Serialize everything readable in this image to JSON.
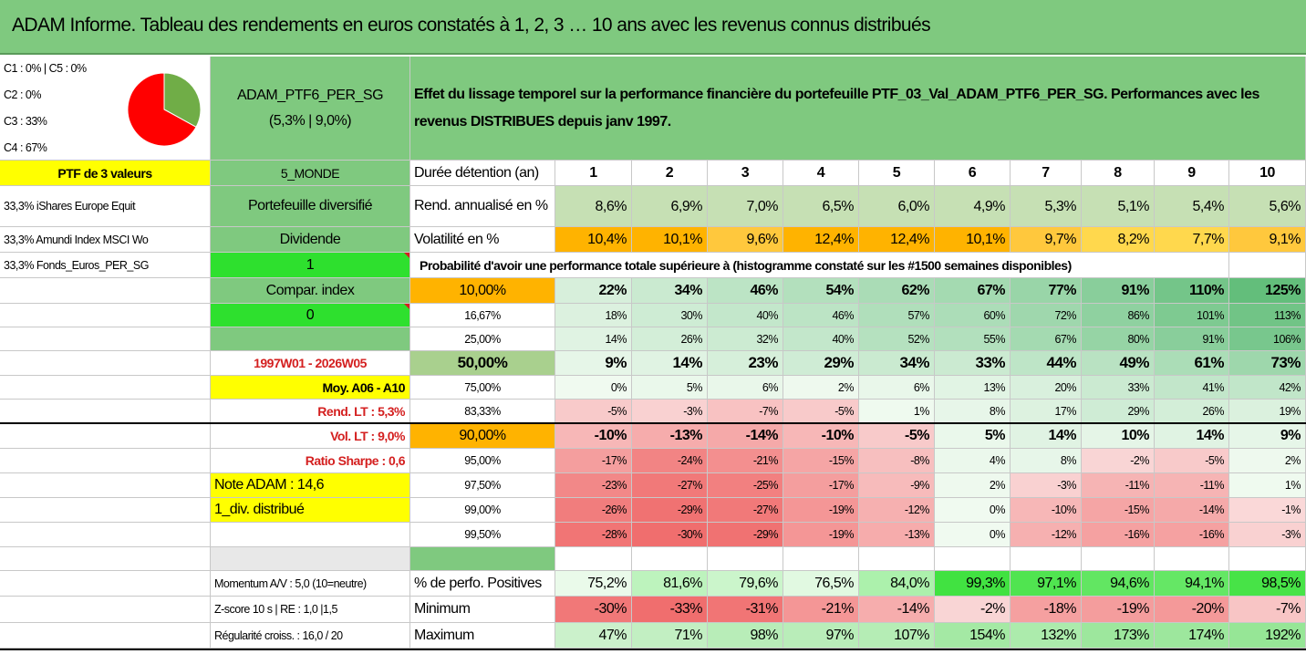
{
  "title": "ADAM Informe. Tableau des rendements en euros constatés à 1, 2, 3 … 10 ans avec les revenus connus distribués",
  "colors": {
    "header_green": "#7fc97f",
    "yellow": "#ffff00",
    "bright_green": "#2ee02e",
    "orange": "#ffb300",
    "pie_red": "#ff0000",
    "pie_green": "#70ad47"
  },
  "classes": [
    "C1 : 0% | C5 : 0%",
    "C2 : 0%",
    "C3 : 33%",
    "C4 : 67%"
  ],
  "pie": {
    "slices": [
      {
        "label": "C3",
        "percent": 33,
        "color": "#70ad47"
      },
      {
        "label": "C4",
        "percent": 67,
        "color": "#ff0000"
      }
    ]
  },
  "portfolio": {
    "name": "ADAM_PTF6_PER_SG",
    "stats": "(5,3% | 9,0%)"
  },
  "description": {
    "line1": "Effet du lissage temporel sur la performance financière du portefeuille PTF_03_Val_ADAM_PTF6_PER_SG. Performances avec les",
    "line2": "revenus DISTRIBUES depuis janv 1997."
  },
  "left": {
    "ptf_label": "PTF de 3 valeurs",
    "zone": "5_MONDE",
    "holdings": [
      "33,3% iShares Europe Equit",
      "33,3% Amundi Index MSCI Wo",
      "33,3% Fonds_Euros_PER_SG"
    ],
    "type": "Portefeuille diversifié",
    "dividend": "Dividende",
    "dividend_value": "1",
    "compar_label": "Compar. index",
    "compar_value": "0",
    "period": "1997W01 - 2026W05",
    "moy": "Moy. A06 - A10",
    "rend_lt": "Rend. LT : 5,3%",
    "vol_lt": "Vol. LT : 9,0%",
    "sharpe": "Ratio Sharpe : 0,6",
    "note": "Note ADAM : 14,6",
    "distrib": "1_div. distribué",
    "momentum": "Momentum A/V : 5,0 (10=neutre)",
    "zscore": "Z-score 10 s | RE : 1,0 |1,5",
    "regularite": "Régularité croiss. : 16,0 / 20"
  },
  "years_label": "Durée détention (an)",
  "years": [
    "1",
    "2",
    "3",
    "4",
    "5",
    "6",
    "7",
    "8",
    "9",
    "10"
  ],
  "rend_label": "Rend. annualisé en %",
  "rend": [
    "8,6%",
    "6,9%",
    "7,0%",
    "6,5%",
    "6,0%",
    "4,9%",
    "5,3%",
    "5,1%",
    "5,4%",
    "5,6%"
  ],
  "vol_label": "Volatilité en %",
  "vol": [
    "10,4%",
    "10,1%",
    "9,6%",
    "12,4%",
    "12,4%",
    "10,1%",
    "9,7%",
    "8,2%",
    "7,7%",
    "9,1%"
  ],
  "proba_title": "Probabilité d'avoir une performance totale supérieure à (histogramme constaté sur les #1500 semaines disponibles)",
  "percentiles": [
    {
      "p": "10,00%",
      "v": [
        22,
        34,
        46,
        54,
        62,
        67,
        77,
        91,
        110,
        125
      ]
    },
    {
      "p": "16,67%",
      "v": [
        18,
        30,
        40,
        46,
        57,
        60,
        72,
        86,
        101,
        113
      ]
    },
    {
      "p": "25,00%",
      "v": [
        14,
        26,
        32,
        40,
        52,
        55,
        67,
        80,
        91,
        106
      ]
    },
    {
      "p": "50,00%",
      "v": [
        9,
        14,
        23,
        29,
        34,
        33,
        44,
        49,
        61,
        73
      ]
    },
    {
      "p": "75,00%",
      "v": [
        0,
        5,
        6,
        2,
        6,
        13,
        20,
        33,
        41,
        42
      ]
    },
    {
      "p": "83,33%",
      "v": [
        -5,
        -3,
        -7,
        -5,
        1,
        8,
        17,
        29,
        26,
        19
      ]
    },
    {
      "p": "90,00%",
      "v": [
        -10,
        -13,
        -14,
        -10,
        -5,
        5,
        14,
        10,
        14,
        9
      ]
    },
    {
      "p": "95,00%",
      "v": [
        -17,
        -24,
        -21,
        -15,
        -8,
        4,
        8,
        -2,
        -5,
        2
      ]
    },
    {
      "p": "97,50%",
      "v": [
        -23,
        -27,
        -25,
        -17,
        -9,
        2,
        -3,
        -11,
        -11,
        1
      ]
    },
    {
      "p": "99,00%",
      "v": [
        -26,
        -29,
        -27,
        -19,
        -12,
        0,
        -10,
        -15,
        -14,
        -1
      ]
    },
    {
      "p": "99,50%",
      "v": [
        -28,
        -30,
        -29,
        -19,
        -13,
        0,
        -12,
        -16,
        -16,
        -3
      ]
    }
  ],
  "pos_label": "% de perfo. Positives",
  "pos": [
    "75,2%",
    "81,6%",
    "79,6%",
    "76,5%",
    "84,0%",
    "99,3%",
    "97,1%",
    "94,6%",
    "94,1%",
    "98,5%"
  ],
  "min_label": "Minimum",
  "min": [
    "-30%",
    "-33%",
    "-31%",
    "-21%",
    "-14%",
    "-2%",
    "-18%",
    "-19%",
    "-20%",
    "-7%"
  ],
  "max_label": "Maximum",
  "max": [
    "47%",
    "71%",
    "98%",
    "97%",
    "107%",
    "154%",
    "132%",
    "173%",
    "174%",
    "192%"
  ]
}
